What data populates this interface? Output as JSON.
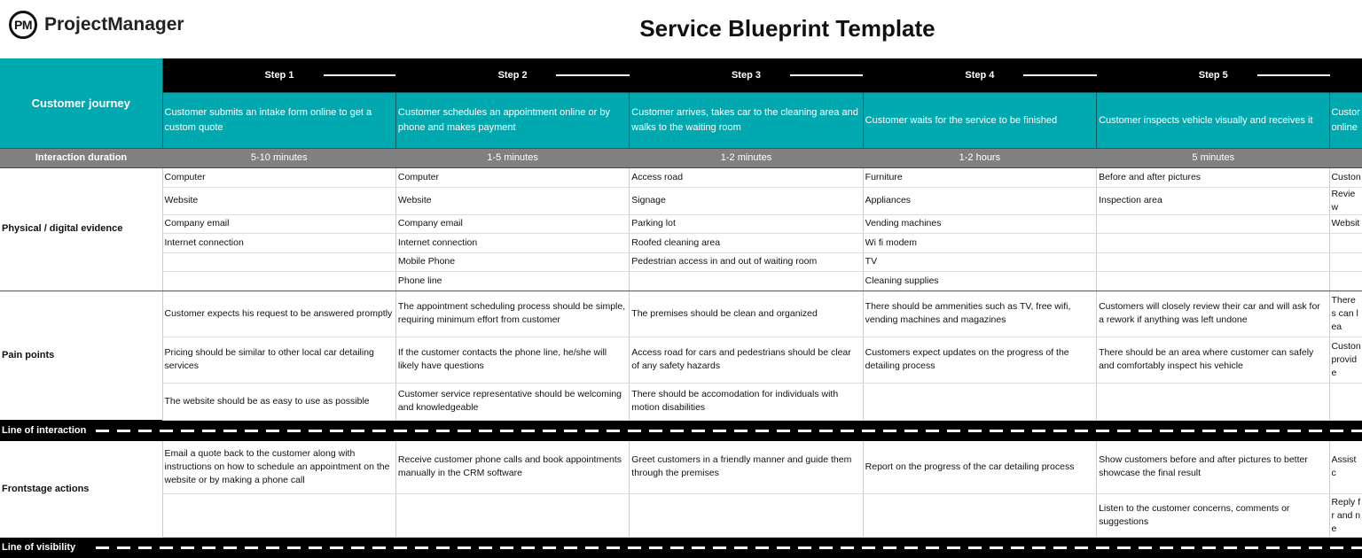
{
  "brand": {
    "mark": "PM",
    "name": "ProjectManager"
  },
  "title": "Service Blueprint Template",
  "labels": {
    "journey": "Customer journey",
    "duration": "Interaction duration",
    "physical": "Physical / digital evidence",
    "pain": "Pain points",
    "line_interaction": "Line of interaction",
    "frontstage": "Frontstage actions",
    "line_visibility": "Line of visibility"
  },
  "colors": {
    "journey": "#00A9B0",
    "step_bar": "#000000",
    "duration_bar": "#808080"
  },
  "steps": [
    {
      "step": "Step 1",
      "description": "Customer submits an intake form online  to get a custom quote",
      "duration": "5-10 minutes",
      "physical": [
        "Computer",
        "Website",
        "Company email",
        "Internet connection",
        "",
        ""
      ],
      "pain": [
        "Customer expects his request to be answered promptly",
        "Pricing should be similar to other local car detailing services",
        "The website should be as easy to use as possible"
      ],
      "frontstage": [
        "Email a quote back to the customer along with instructions on how to schedule an appointment on the website or by making a phone call",
        ""
      ]
    },
    {
      "step": "Step 2",
      "description": "Customer schedules an appointment online or by phone and makes payment",
      "duration": "1-5 minutes",
      "physical": [
        "Computer",
        "Website",
        "Company email",
        "Internet connection",
        "Mobile Phone",
        "Phone line"
      ],
      "pain": [
        "The appointment scheduling process should be simple, requiring minimum effort from customer",
        "If the customer contacts the phone line, he/she will likely have questions",
        "Customer service representative should be welcoming and knowledgeable"
      ],
      "frontstage": [
        "Receive customer phone calls and book appointments manually in the CRM software",
        ""
      ]
    },
    {
      "step": "Step 3",
      "description": "Customer arrives, takes car to the cleaning area and walks to the waiting room",
      "duration": "1-2 minutes",
      "physical": [
        "Access road",
        "Signage",
        "Parking lot",
        "Roofed cleaning area",
        "Pedestrian access in and out of waiting room",
        ""
      ],
      "pain": [
        "The premises should be clean and organized",
        "Access road for cars and pedestrians should be clear of any safety hazards",
        "There should be accomodation for individuals with motion disabilities"
      ],
      "frontstage": [
        "Greet customers in a friendly manner and guide them through the premises",
        ""
      ]
    },
    {
      "step": "Step 4",
      "description": "Customer waits for the service to be finished",
      "duration": "1-2 hours",
      "physical": [
        "Furniture",
        "Appliances",
        "Vending machines",
        "Wi fi modem",
        "TV",
        "Cleaning supplies"
      ],
      "pain": [
        "There should be ammenities such as TV, free wifi, vending machines and magazines",
        "Customers expect updates on the progress of the detailing process",
        ""
      ],
      "frontstage": [
        "Report on the progress of the car detailing process",
        ""
      ]
    },
    {
      "step": "Step 5",
      "description": "Customer inspects vehicle visually and receives it",
      "duration": "5 minutes",
      "physical": [
        "Before and after pictures",
        "Inspection area",
        "",
        "",
        "",
        ""
      ],
      "pain": [
        "Customers will closely review their car and will ask for a rework if anything was left undone",
        "There should be an area where customer can safely and comfortably inspect his vehicle",
        ""
      ],
      "frontstage": [
        "Show customers before and after pictures to better showcase the final result",
        "Listen to the customer concerns, comments or suggestions"
      ]
    },
    {
      "step": "",
      "description": "Custor online",
      "duration": "",
      "physical": [
        "Custon",
        "Review",
        "Websit",
        "",
        "",
        ""
      ],
      "pain": [
        "There s can lea",
        "Custon provide",
        ""
      ],
      "frontstage": [
        "Assist c",
        "Reply fr and ne"
      ]
    }
  ]
}
